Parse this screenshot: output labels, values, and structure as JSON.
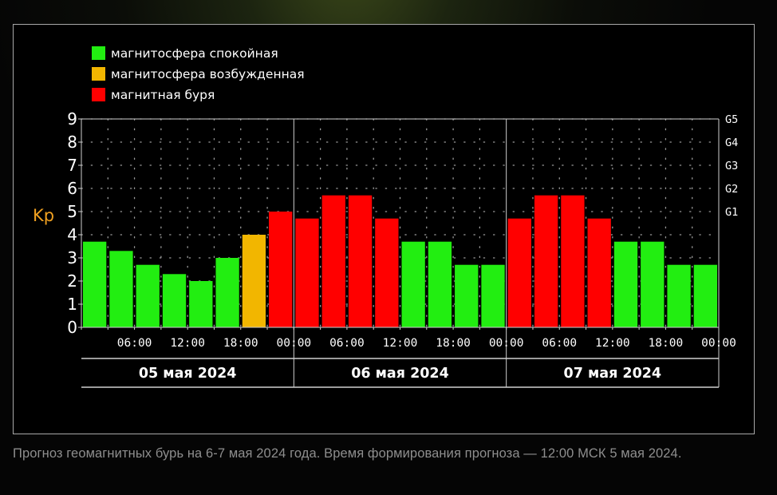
{
  "chart_data": {
    "type": "bar",
    "ylabel": "Kp",
    "ylim": [
      0,
      9
    ],
    "y_ticks": [
      "0",
      "1",
      "2",
      "3",
      "4",
      "5",
      "6",
      "7",
      "8",
      "9"
    ],
    "g_scale": [
      {
        "label": "G1",
        "kp": 5
      },
      {
        "label": "G2",
        "kp": 6
      },
      {
        "label": "G3",
        "kp": 7
      },
      {
        "label": "G4",
        "kp": 8
      },
      {
        "label": "G5",
        "kp": 9
      }
    ],
    "legend": [
      {
        "label": "магнитосфера спокойная",
        "color": "#22ee11"
      },
      {
        "label": "магнитосфера возбужденная",
        "color": "#f2b600"
      },
      {
        "label": "магнитная буря",
        "color": "#ff0000"
      }
    ],
    "x_tick_labels": [
      "06:00",
      "12:00",
      "18:00",
      "00:00",
      "06:00",
      "12:00",
      "18:00",
      "00:00",
      "06:00",
      "12:00",
      "18:00",
      "00:00"
    ],
    "day_labels": [
      "05 мая 2024",
      "06 мая 2024",
      "07 мая 2024"
    ],
    "grid": true,
    "values": [
      3.7,
      3.3,
      2.7,
      2.3,
      2.0,
      3.0,
      4.0,
      5.0,
      4.7,
      5.7,
      5.7,
      4.7,
      3.7,
      3.7,
      2.7,
      2.7,
      4.7,
      5.7,
      5.7,
      4.7,
      3.7,
      3.7,
      2.7,
      2.7
    ],
    "levels": [
      "quiet",
      "quiet",
      "quiet",
      "quiet",
      "quiet",
      "quiet",
      "excited",
      "storm",
      "storm",
      "storm",
      "storm",
      "storm",
      "quiet",
      "quiet",
      "quiet",
      "quiet",
      "storm",
      "storm",
      "storm",
      "storm",
      "quiet",
      "quiet",
      "quiet",
      "quiet"
    ],
    "level_colors": {
      "quiet": "#22ee11",
      "excited": "#f2b600",
      "storm": "#ff0000"
    }
  },
  "caption": "Прогноз геомагнитных бурь на 6-7 мая 2024 года. Время формирования прогноза — 12:00 МСК 5 мая 2024."
}
